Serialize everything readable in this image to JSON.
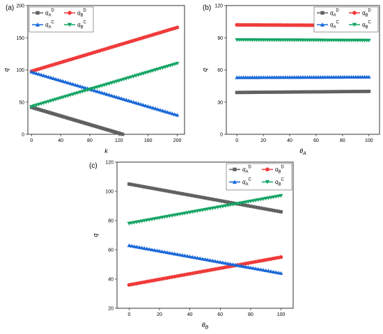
{
  "colors": {
    "qAD": "#616161",
    "qBD": "#f03a3a",
    "qAC": "#1b69d8",
    "qBC": "#15a565"
  },
  "chart_data": [
    {
      "id": "a",
      "panel_label": "(a)",
      "type": "line",
      "xlabel": "k",
      "ylabel": "q",
      "xlim": [
        -5,
        210
      ],
      "ylim": [
        0,
        200
      ],
      "xticks": [
        0,
        40,
        80,
        120,
        160,
        200
      ],
      "yticks": [
        0,
        50,
        100,
        150,
        200
      ],
      "legend_position": "top-left",
      "series": [
        {
          "key": "qAD",
          "name": "q",
          "sub": "A",
          "sup": "D",
          "marker": "square",
          "x": [
            0,
            125
          ],
          "y": [
            42,
            0
          ]
        },
        {
          "key": "qBD",
          "name": "q",
          "sub": "B",
          "sup": "D",
          "marker": "circle",
          "x": [
            0,
            200
          ],
          "y": [
            98,
            166
          ]
        },
        {
          "key": "qAC",
          "name": "q",
          "sub": "A",
          "sup": "C",
          "marker": "triangle-up",
          "x": [
            0,
            200
          ],
          "y": [
            97,
            30
          ]
        },
        {
          "key": "qBC",
          "name": "q",
          "sub": "B",
          "sup": "C",
          "marker": "triangle-down",
          "x": [
            0,
            200
          ],
          "y": [
            43,
            110
          ]
        }
      ]
    },
    {
      "id": "b",
      "panel_label": "(b)",
      "type": "line",
      "xlabel": "θA",
      "ylabel": "q",
      "xlim": [
        -8,
        108
      ],
      "ylim": [
        0,
        120
      ],
      "xticks": [
        0,
        20,
        40,
        60,
        80,
        100
      ],
      "yticks": [
        0,
        30,
        60,
        90,
        120
      ],
      "legend_position": "top-right",
      "series": [
        {
          "key": "qAD",
          "name": "q",
          "sub": "A",
          "sup": "D",
          "marker": "square",
          "x": [
            0,
            100
          ],
          "y": [
            39,
            40
          ]
        },
        {
          "key": "qBD",
          "name": "q",
          "sub": "B",
          "sup": "D",
          "marker": "circle",
          "x": [
            0,
            100
          ],
          "y": [
            102,
            101.5
          ]
        },
        {
          "key": "qAC",
          "name": "q",
          "sub": "A",
          "sup": "C",
          "marker": "triangle-up",
          "x": [
            0,
            100
          ],
          "y": [
            53,
            53.5
          ]
        },
        {
          "key": "qBC",
          "name": "q",
          "sub": "B",
          "sup": "C",
          "marker": "triangle-down",
          "x": [
            0,
            100
          ],
          "y": [
            88,
            87.5
          ]
        }
      ]
    },
    {
      "id": "c",
      "panel_label": "(c)",
      "type": "line",
      "xlabel": "θB",
      "ylabel": "q",
      "xlim": [
        -8,
        108
      ],
      "ylim": [
        20,
        120
      ],
      "xticks": [
        0,
        20,
        40,
        60,
        80,
        100
      ],
      "yticks": [
        20,
        40,
        60,
        80,
        100,
        120
      ],
      "legend_position": "top-right",
      "series": [
        {
          "key": "qAD",
          "name": "q",
          "sub": "A",
          "sup": "D",
          "marker": "square",
          "x": [
            0,
            100
          ],
          "y": [
            105,
            86
          ]
        },
        {
          "key": "qBD",
          "name": "q",
          "sub": "B",
          "sup": "D",
          "marker": "circle",
          "x": [
            0,
            100
          ],
          "y": [
            36,
            55
          ]
        },
        {
          "key": "qAC",
          "name": "q",
          "sub": "A",
          "sup": "C",
          "marker": "triangle-up",
          "x": [
            0,
            100
          ],
          "y": [
            63,
            44
          ]
        },
        {
          "key": "qBC",
          "name": "q",
          "sub": "B",
          "sup": "C",
          "marker": "triangle-down",
          "x": [
            0,
            100
          ],
          "y": [
            78,
            97
          ]
        }
      ]
    }
  ]
}
